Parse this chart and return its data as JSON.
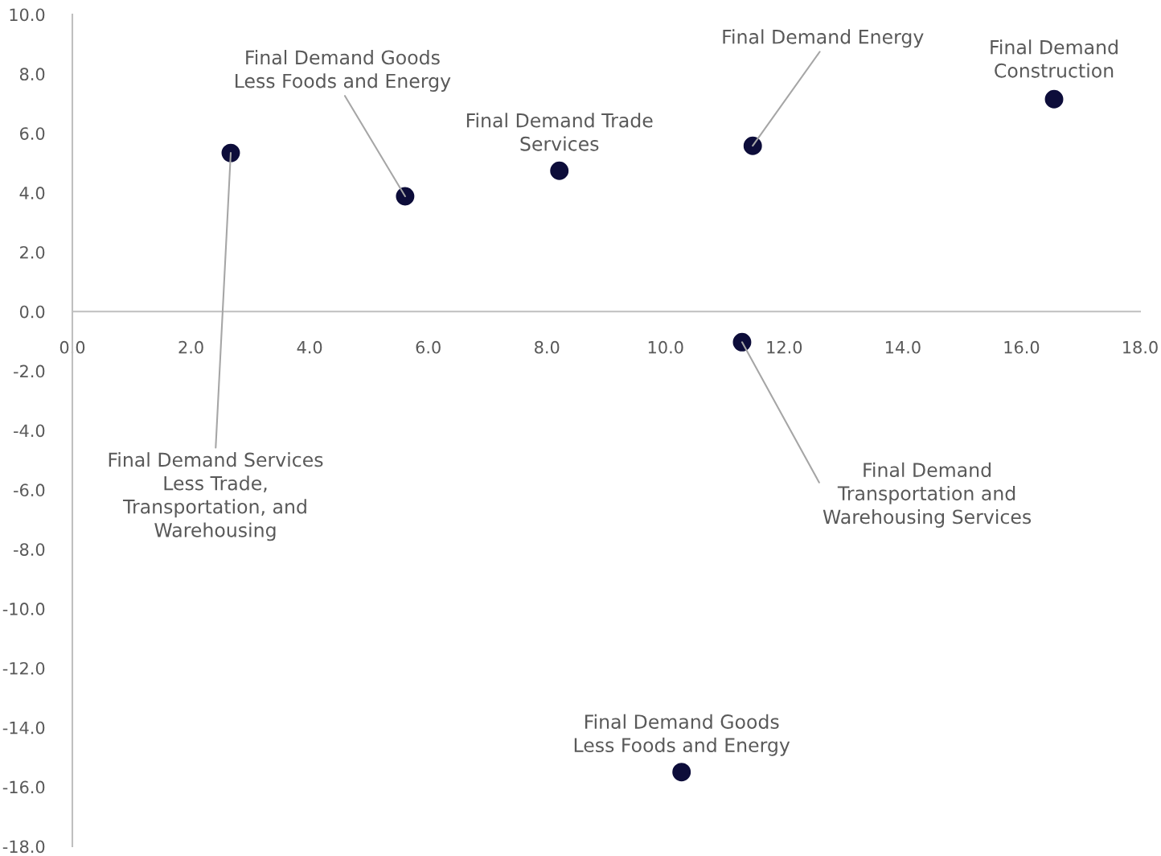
{
  "chart_data": {
    "type": "scatter",
    "marker": "circle",
    "grid": false,
    "legend": false,
    "x": [
      2.67,
      5.61,
      8.21,
      11.47,
      16.55,
      11.29,
      10.27
    ],
    "series": [
      {
        "color": "#0d0d3a",
        "values": [
          5.34,
          3.88,
          4.74,
          5.58,
          7.15,
          -1.03,
          -15.5
        ]
      }
    ],
    "annotations": [
      {
        "text": "Final Demand Services\nLess Trade,\nTransportation, and\nWarehousing",
        "x": 2.67,
        "y": 5.34
      },
      {
        "text": "Final Demand Goods\nLess Foods and Energy",
        "x": 5.61,
        "y": 3.88
      },
      {
        "text": "Final Demand Trade\nServices",
        "x": 8.21,
        "y": 4.74
      },
      {
        "text": "Final Demand Energy",
        "x": 11.47,
        "y": 5.58
      },
      {
        "text": "Final Demand\nConstruction",
        "x": 16.55,
        "y": 7.15
      },
      {
        "text": "Final Demand\nTransportation and\nWarehousing Services",
        "x": 11.29,
        "y": -1.03
      },
      {
        "text": "Final Demand Goods\nLess Foods and Energy",
        "x": 10.27,
        "y": -15.5
      }
    ],
    "xlim": [
      0,
      18
    ],
    "ylim": [
      -18,
      10
    ],
    "xticks": [
      {
        "value": 0,
        "label": "0.0"
      },
      {
        "value": 2,
        "label": "2.0"
      },
      {
        "value": 4,
        "label": "4.0"
      },
      {
        "value": 6,
        "label": "6.0"
      },
      {
        "value": 8,
        "label": "8.0"
      },
      {
        "value": 10,
        "label": "10.0"
      },
      {
        "value": 12,
        "label": "12.0"
      },
      {
        "value": 14,
        "label": "14.0"
      },
      {
        "value": 16,
        "label": "16.0"
      },
      {
        "value": 18,
        "label": "18.0"
      }
    ],
    "yticks": [
      {
        "value": -18,
        "label": "-18.0"
      },
      {
        "value": -16,
        "label": "-16.0"
      },
      {
        "value": -14,
        "label": "-14.0"
      },
      {
        "value": -12,
        "label": "-12.0"
      },
      {
        "value": -10,
        "label": "-10.0"
      },
      {
        "value": -8,
        "label": "-8.0"
      },
      {
        "value": -6,
        "label": "-6.0"
      },
      {
        "value": -4,
        "label": "-4.0"
      },
      {
        "value": -2,
        "label": "-2.0"
      },
      {
        "value": 0,
        "label": "0.0"
      },
      {
        "value": 2,
        "label": "2.0"
      },
      {
        "value": 4,
        "label": "4.0"
      },
      {
        "value": 6,
        "label": "6.0"
      },
      {
        "value": 8,
        "label": "8.0"
      },
      {
        "value": 10,
        "label": "10.0"
      }
    ]
  }
}
